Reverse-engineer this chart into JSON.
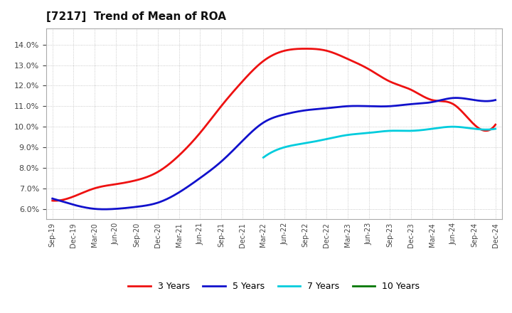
{
  "title": "[7217]  Trend of Mean of ROA",
  "title_fontsize": 11,
  "background_color": "#ffffff",
  "plot_background_color": "#ffffff",
  "grid_color": "#bbbbbb",
  "x_labels": [
    "Sep-19",
    "Dec-19",
    "Mar-20",
    "Jun-20",
    "Sep-20",
    "Dec-20",
    "Mar-21",
    "Jun-21",
    "Sep-21",
    "Dec-21",
    "Mar-22",
    "Jun-22",
    "Sep-22",
    "Dec-22",
    "Mar-23",
    "Jun-23",
    "Sep-23",
    "Dec-23",
    "Mar-24",
    "Jun-24",
    "Sep-24",
    "Dec-24"
  ],
  "y_min": 0.055,
  "y_max": 0.148,
  "y_ticks": [
    0.06,
    0.07,
    0.08,
    0.09,
    0.1,
    0.11,
    0.12,
    0.13,
    0.14
  ],
  "series": {
    "3 Years": {
      "color": "#ee1111",
      "data_x": [
        0,
        1,
        2,
        3,
        4,
        5,
        6,
        7,
        8,
        9,
        10,
        11,
        12,
        13,
        14,
        15,
        16,
        17,
        18,
        19,
        20,
        21
      ],
      "data_y": [
        0.064,
        0.066,
        0.07,
        0.072,
        0.074,
        0.078,
        0.086,
        0.097,
        0.11,
        0.122,
        0.132,
        0.137,
        0.138,
        0.137,
        0.133,
        0.128,
        0.122,
        0.118,
        0.113,
        0.111,
        0.101,
        0.101
      ]
    },
    "5 Years": {
      "color": "#1111cc",
      "data_x": [
        0,
        1,
        2,
        3,
        4,
        5,
        6,
        7,
        8,
        9,
        10,
        11,
        12,
        13,
        14,
        15,
        16,
        17,
        18,
        19,
        20,
        21
      ],
      "data_y": [
        0.065,
        0.062,
        0.06,
        0.06,
        0.061,
        0.063,
        0.068,
        0.075,
        0.083,
        0.093,
        0.102,
        0.106,
        0.108,
        0.109,
        0.11,
        0.11,
        0.11,
        0.111,
        0.112,
        0.114,
        0.113,
        0.113
      ]
    },
    "7 Years": {
      "color": "#00ccdd",
      "data_x": [
        10,
        11,
        12,
        13,
        14,
        15,
        16,
        17,
        18,
        19,
        20,
        21
      ],
      "data_y": [
        0.085,
        0.09,
        0.092,
        0.094,
        0.096,
        0.097,
        0.098,
        0.098,
        0.099,
        0.1,
        0.099,
        0.099
      ]
    },
    "10 Years": {
      "color": "#007700",
      "data_x": [],
      "data_y": []
    }
  },
  "legend_labels": [
    "3 Years",
    "5 Years",
    "7 Years",
    "10 Years"
  ],
  "legend_colors": [
    "#ee1111",
    "#1111cc",
    "#00ccdd",
    "#007700"
  ]
}
